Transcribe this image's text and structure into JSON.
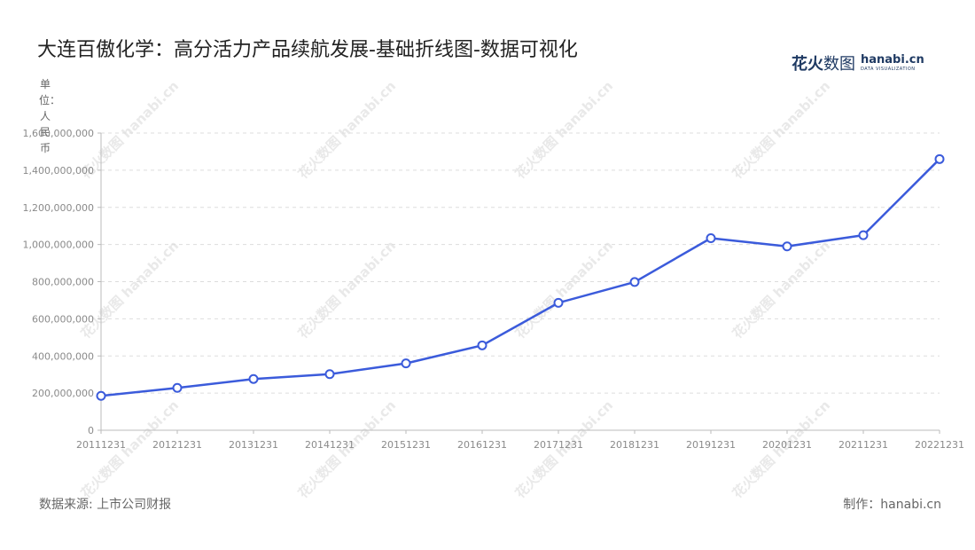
{
  "title": "大连百傲化学：高分活力产品续航发展-基础折线图-数据可视化",
  "logo": {
    "cn_part1": "花火",
    "cn_part2": "数图",
    "en_main": "hanabi.cn",
    "en_sub": "DATA VISUALIZATION"
  },
  "unit_label": "单位：人民币",
  "footer": {
    "source": "数据来源: 上市公司财报",
    "maker": "制作：hanabi.cn"
  },
  "watermark_text": "花火数图 hanabi.cn",
  "colors": {
    "line": "#3b5bdb",
    "grid": "#dddddd",
    "axis": "#bbbbbb",
    "point_fill": "#ffffff"
  },
  "chart_data": {
    "type": "line",
    "categories": [
      "20111231",
      "20121231",
      "20131231",
      "20141231",
      "20151231",
      "20161231",
      "20171231",
      "20181231",
      "20191231",
      "20201231",
      "20211231",
      "20221231"
    ],
    "series": [
      {
        "values": [
          185000000,
          228000000,
          276000000,
          302000000,
          360000000,
          457000000,
          686000000,
          798000000,
          1034000000,
          990000000,
          1050000000,
          1460000000
        ]
      }
    ],
    "y_ticks": [
      "0",
      "200,000,000",
      "400,000,000",
      "600,000,000",
      "800,000,000",
      "1,000,000,000",
      "1,200,000,000",
      "1,400,000,000",
      "1,600,000,000"
    ],
    "ylim": [
      0,
      1600000000
    ],
    "grid": true,
    "legend": "none"
  }
}
